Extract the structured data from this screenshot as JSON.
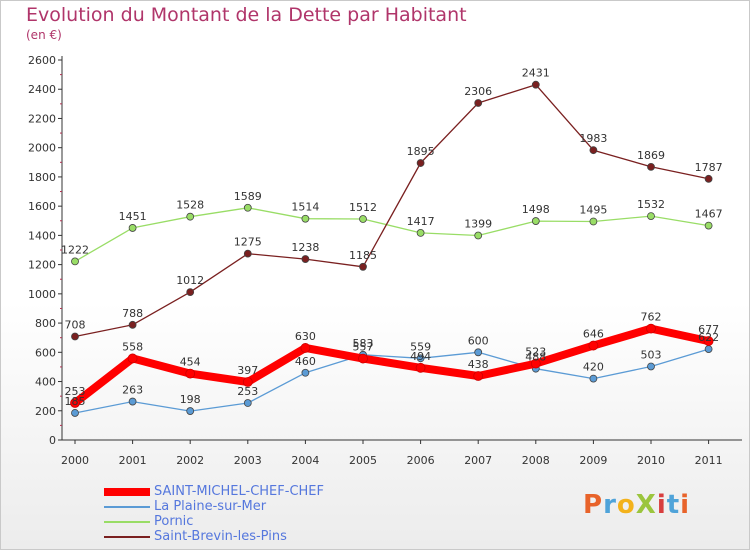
{
  "header": {
    "title": "Evolution du Montant de la Dette par Habitant",
    "subtitle": "(en €)"
  },
  "logo": {
    "text": "ProXiti",
    "colors": [
      "#e8632a",
      "#4fa3d9",
      "#f3b21b",
      "#9bc53d",
      "#d83e3e",
      "#4fa3d9",
      "#e8632a"
    ]
  },
  "chart_data": {
    "type": "line",
    "title": "Evolution du Montant de la Dette par Habitant",
    "subtitle": "(en €)",
    "xlabel": "",
    "ylabel": "",
    "x": [
      "2000",
      "2001",
      "2002",
      "2003",
      "2004",
      "2005",
      "2006",
      "2007",
      "2008",
      "2009",
      "2010",
      "2011"
    ],
    "ylim": [
      0,
      2600
    ],
    "yticks": [
      0,
      200,
      400,
      600,
      800,
      1000,
      1200,
      1400,
      1600,
      1800,
      2000,
      2200,
      2400,
      2600
    ],
    "grid": false,
    "legend_position": "bottom-left",
    "series": [
      {
        "name": "SAINT-MICHEL-CHEF-CHEF",
        "color": "#ff0000",
        "width": 8,
        "values": [
          253,
          558,
          454,
          397,
          630,
          557,
          494,
          438,
          523,
          646,
          762,
          677
        ]
      },
      {
        "name": "La Plaine-sur-Mer",
        "color": "#5b9bd5",
        "width": 1.3,
        "values": [
          185,
          263,
          198,
          253,
          460,
          583,
          559,
          600,
          488,
          420,
          503,
          622
        ]
      },
      {
        "name": "Pornic",
        "color": "#99dd66",
        "width": 1.3,
        "values": [
          1222,
          1451,
          1528,
          1589,
          1514,
          1512,
          1417,
          1399,
          1498,
          1495,
          1532,
          1467
        ]
      },
      {
        "name": "Saint-Brevin-les-Pins",
        "color": "#7a2020",
        "width": 1.3,
        "values": [
          708,
          788,
          1012,
          1275,
          1238,
          1185,
          1895,
          2306,
          2431,
          1983,
          1869,
          1787
        ]
      }
    ]
  }
}
